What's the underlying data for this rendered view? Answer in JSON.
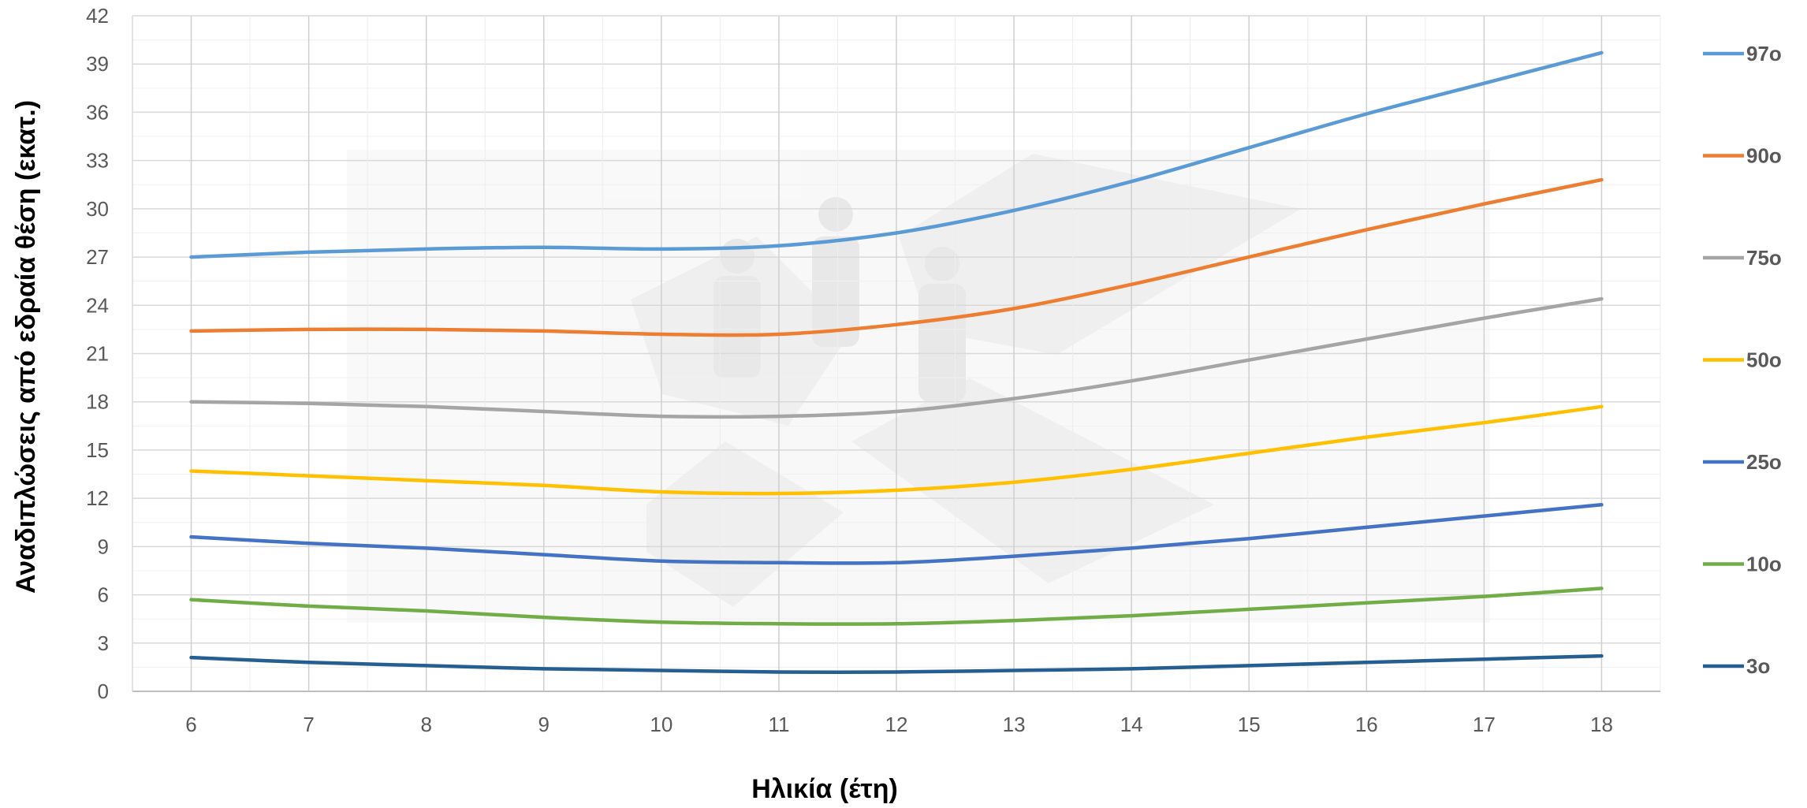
{
  "chart_data": {
    "type": "line",
    "xlabel": "Ηλικία (έτη)",
    "ylabel": "Αναδιπλώσεις από εδραία θέση (εκατ.)",
    "x": [
      6,
      7,
      8,
      9,
      10,
      11,
      12,
      13,
      14,
      15,
      16,
      17,
      18
    ],
    "ylim": [
      0,
      42
    ],
    "yticks": [
      0,
      3,
      6,
      9,
      12,
      15,
      18,
      21,
      24,
      27,
      30,
      33,
      36,
      39,
      42
    ],
    "grid": true,
    "legend_position": "right",
    "series": [
      {
        "name": "97o",
        "color": "#5B9BD5",
        "values": [
          27.0,
          27.3,
          27.5,
          27.6,
          27.5,
          27.7,
          28.5,
          29.9,
          31.7,
          33.8,
          35.9,
          37.8,
          39.7
        ]
      },
      {
        "name": "90o",
        "color": "#ED7D31",
        "values": [
          22.4,
          22.5,
          22.5,
          22.4,
          22.2,
          22.2,
          22.8,
          23.8,
          25.3,
          27.0,
          28.7,
          30.3,
          31.8
        ]
      },
      {
        "name": "75o",
        "color": "#A5A5A5",
        "values": [
          18.0,
          17.9,
          17.7,
          17.4,
          17.1,
          17.1,
          17.4,
          18.2,
          19.3,
          20.6,
          21.9,
          23.2,
          24.4
        ]
      },
      {
        "name": "50o",
        "color": "#FFC000",
        "values": [
          13.7,
          13.4,
          13.1,
          12.8,
          12.4,
          12.3,
          12.5,
          13.0,
          13.8,
          14.8,
          15.8,
          16.7,
          17.7
        ]
      },
      {
        "name": "25o",
        "color": "#4472C4",
        "values": [
          9.6,
          9.2,
          8.9,
          8.5,
          8.1,
          8.0,
          8.0,
          8.4,
          8.9,
          9.5,
          10.2,
          10.9,
          11.6
        ]
      },
      {
        "name": "10o",
        "color": "#70AD47",
        "values": [
          5.7,
          5.3,
          5.0,
          4.6,
          4.3,
          4.2,
          4.2,
          4.4,
          4.7,
          5.1,
          5.5,
          5.9,
          6.4
        ]
      },
      {
        "name": "3o",
        "color": "#255E91",
        "values": [
          2.1,
          1.8,
          1.6,
          1.4,
          1.3,
          1.2,
          1.2,
          1.3,
          1.4,
          1.6,
          1.8,
          2.0,
          2.2
        ]
      }
    ]
  }
}
